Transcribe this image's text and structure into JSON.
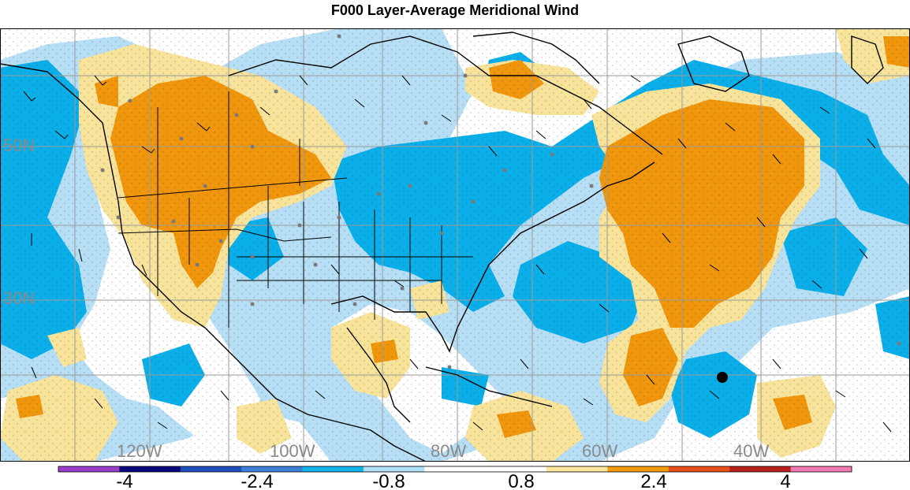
{
  "title": "F000 Layer-Average Meridional Wind",
  "lon_labels": [
    "120W",
    "100W",
    "80W",
    "60W",
    "40W"
  ],
  "lat_labels": [
    "50N",
    "30N"
  ],
  "colorbar": {
    "tick_labels": [
      "-4",
      "-2.4",
      "-0.8",
      "0.8",
      "2.4",
      "4"
    ],
    "colors": [
      "#9a3fc9",
      "#08087a",
      "#1f4fbf",
      "#3a7fd8",
      "#13b4ea",
      "#aee0f5",
      "#ffffff",
      "#ffffff",
      "#fbe79a",
      "#f39c12",
      "#e8501b",
      "#b8201b",
      "#f07bb0"
    ]
  },
  "palette": {
    "negative_strong": "#0aaee8",
    "negative_weak": "#b6def4",
    "neutral": "#ffffff",
    "positive_weak": "#f8e39a",
    "positive_strong": "#f0960d",
    "coast": "#000000",
    "grid": "#9a9a9a",
    "station_dot": "#7a7a7a",
    "marker": "#000000"
  }
}
